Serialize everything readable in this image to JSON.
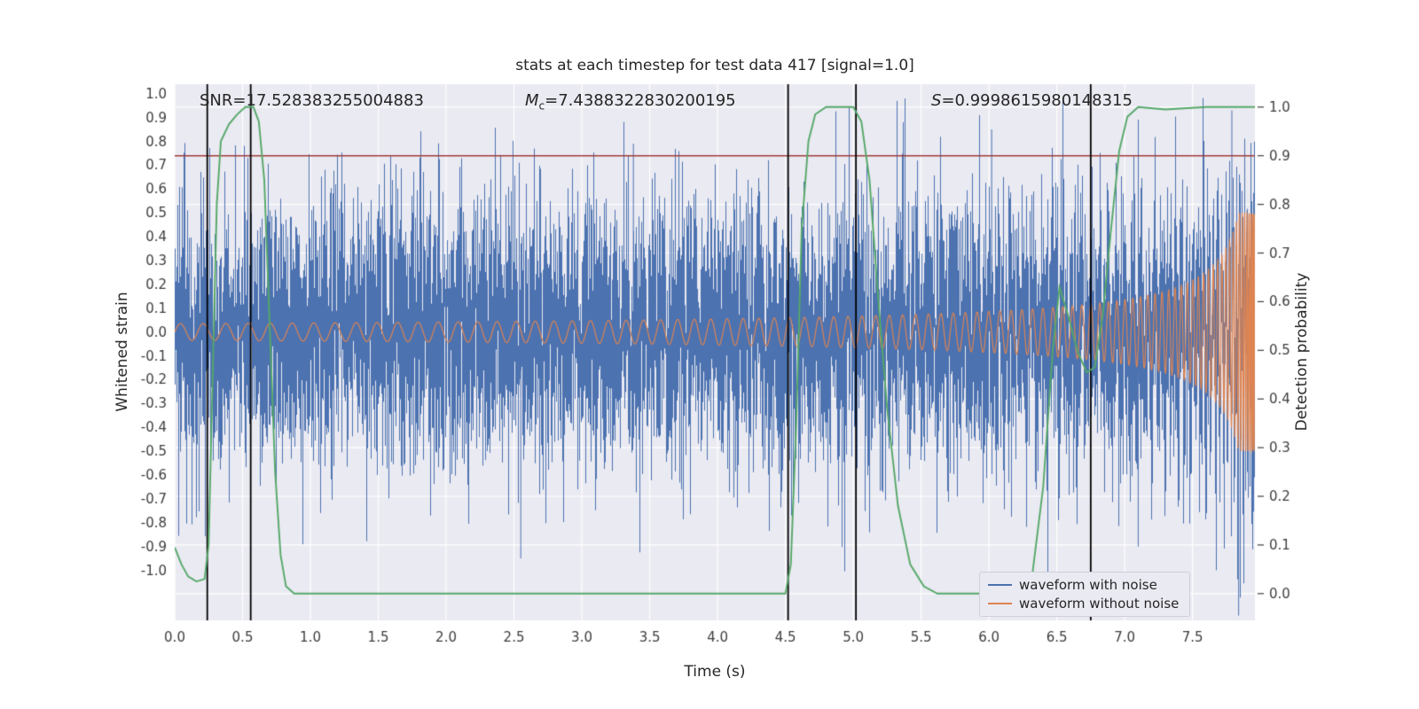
{
  "figure": {
    "title": "stats at each timestep for test data 417 [signal=1.0]",
    "xlabel": "Time (s)",
    "ylabel_left": "Whitened strain",
    "ylabel_right": "Detection probability"
  },
  "annotations": {
    "snr": {
      "label": "SNR",
      "value": "=17.528383255004883"
    },
    "mc": {
      "label": "M",
      "sub": "c",
      "value": "=7.4388322830200195"
    },
    "s": {
      "label": "S",
      "value": "=0.9998615980148315"
    }
  },
  "legend": {
    "items": [
      {
        "label": "waveform with noise",
        "color": "#4c72b0"
      },
      {
        "label": "waveform without noise",
        "color": "#dd8452"
      }
    ]
  },
  "chart_data": {
    "type": "line",
    "title": "stats at each timestep for test data 417 [signal=1.0]",
    "xlabel": "Time (s)",
    "ylabel_left": "Whitened strain",
    "ylabel_right": "Detection probability",
    "xlim": [
      0.0,
      7.96
    ],
    "ylim_left": [
      -1.21,
      1.04
    ],
    "ylim_right": [
      -0.055,
      1.047
    ],
    "x_ticks": [
      0.0,
      0.5,
      1.0,
      1.5,
      2.0,
      2.5,
      3.0,
      3.5,
      4.0,
      4.5,
      5.0,
      5.5,
      6.0,
      6.5,
      7.0,
      7.5
    ],
    "y_ticks_left": [
      -1.0,
      -0.9,
      -0.8,
      -0.7,
      -0.6,
      -0.5,
      -0.4,
      -0.3,
      -0.2,
      -0.1,
      0.0,
      0.1,
      0.2,
      0.3,
      0.4,
      0.5,
      0.6,
      0.7,
      0.8,
      0.9,
      1.0
    ],
    "y_ticks_right": [
      0.0,
      0.1,
      0.2,
      0.3,
      0.4,
      0.5,
      0.6,
      0.7,
      0.8,
      0.9,
      1.0
    ],
    "background": "#eaeaf2",
    "grid_color": "#ffffff",
    "tick_label_color": "#3c3c3c",
    "threshold_line": {
      "axis": "right",
      "value": 0.9,
      "color": "#9f3a38"
    },
    "vlines": {
      "color": "#000000",
      "times": [
        0.24,
        0.56,
        4.52,
        5.02,
        6.75
      ]
    },
    "series": [
      {
        "name": "waveform with noise",
        "kind": "noise",
        "axis": "left",
        "color": "#4c72b0",
        "sigma": 0.28,
        "seed": 417,
        "samples_per_pixel": 6,
        "forced_spikes": [
          {
            "t": 3.38,
            "v": 0.79
          },
          {
            "t": 6.02,
            "v": 0.85
          },
          {
            "t": 2.55,
            "v": -0.95
          },
          {
            "t": 7.1,
            "v": -0.9
          },
          {
            "t": 7.79,
            "v": 0.93
          },
          {
            "t": 7.84,
            "v": -1.19
          }
        ]
      },
      {
        "name": "waveform without noise",
        "kind": "chirp",
        "axis": "left",
        "color": "#dd8452",
        "t_merge": 7.97,
        "amp0": 0.1338,
        "amp_exponent": 0.646,
        "amp_max": 0.5,
        "freq0": 16.65,
        "freq_exponent": 0.5
      },
      {
        "name": "detection probability",
        "kind": "line",
        "axis": "right",
        "color": "#55a868",
        "points": [
          [
            0.0,
            0.095
          ],
          [
            0.05,
            0.06
          ],
          [
            0.1,
            0.035
          ],
          [
            0.16,
            0.025
          ],
          [
            0.22,
            0.03
          ],
          [
            0.25,
            0.1
          ],
          [
            0.28,
            0.45
          ],
          [
            0.31,
            0.8
          ],
          [
            0.34,
            0.93
          ],
          [
            0.4,
            0.965
          ],
          [
            0.46,
            0.985
          ],
          [
            0.52,
            1.0
          ],
          [
            0.58,
            1.0
          ],
          [
            0.62,
            0.97
          ],
          [
            0.66,
            0.85
          ],
          [
            0.7,
            0.55
          ],
          [
            0.74,
            0.25
          ],
          [
            0.78,
            0.08
          ],
          [
            0.82,
            0.015
          ],
          [
            0.88,
            0.0
          ],
          [
            4.5,
            0.0
          ],
          [
            4.54,
            0.06
          ],
          [
            4.58,
            0.35
          ],
          [
            4.62,
            0.75
          ],
          [
            4.67,
            0.93
          ],
          [
            4.72,
            0.985
          ],
          [
            4.8,
            1.0
          ],
          [
            5.0,
            1.0
          ],
          [
            5.06,
            0.97
          ],
          [
            5.12,
            0.85
          ],
          [
            5.18,
            0.62
          ],
          [
            5.25,
            0.38
          ],
          [
            5.33,
            0.18
          ],
          [
            5.42,
            0.06
          ],
          [
            5.52,
            0.015
          ],
          [
            5.62,
            0.0
          ],
          [
            6.25,
            0.0
          ],
          [
            6.32,
            0.04
          ],
          [
            6.4,
            0.22
          ],
          [
            6.47,
            0.5
          ],
          [
            6.52,
            0.63
          ],
          [
            6.58,
            0.575
          ],
          [
            6.65,
            0.5
          ],
          [
            6.72,
            0.455
          ],
          [
            6.78,
            0.465
          ],
          [
            6.84,
            0.575
          ],
          [
            6.9,
            0.75
          ],
          [
            6.96,
            0.91
          ],
          [
            7.02,
            0.98
          ],
          [
            7.1,
            1.0
          ],
          [
            7.3,
            0.995
          ],
          [
            7.6,
            1.0
          ],
          [
            7.96,
            1.0
          ]
        ]
      }
    ],
    "legend_entries": [
      "waveform with noise",
      "waveform without noise"
    ],
    "legend_position": "lower right",
    "grid": "on"
  }
}
